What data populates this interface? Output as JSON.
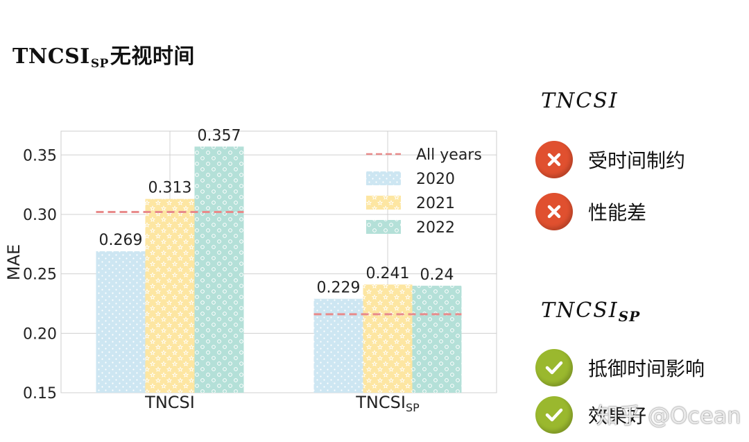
{
  "slide_title": {
    "main": "TNCSI",
    "sub": "SP",
    "suffix": "无视时间"
  },
  "chart_data": {
    "type": "bar",
    "ylabel": "MAE",
    "ylim": [
      0.15,
      0.37
    ],
    "yticks": [
      "0.15",
      "0.20",
      "0.25",
      "0.30",
      "0.35"
    ],
    "grid": true,
    "legend_position": "top-right",
    "categories": [
      {
        "main": "TNCSI",
        "sub": ""
      },
      {
        "main": "TNCSI",
        "sub": "SP"
      }
    ],
    "series": [
      {
        "name": "2020",
        "color": "#cde6f2",
        "pattern": "dots",
        "values": [
          0.269,
          0.229
        ],
        "labels": [
          "0.269",
          "0.229"
        ]
      },
      {
        "name": "2021",
        "color": "#fde6a2",
        "pattern": "stars",
        "values": [
          0.313,
          0.241
        ],
        "labels": [
          "0.313",
          "0.241"
        ]
      },
      {
        "name": "2022",
        "color": "#b4e0d8",
        "pattern": "circles",
        "values": [
          0.357,
          0.24
        ],
        "labels": [
          "0.357",
          "0.24"
        ]
      }
    ],
    "reference_line": {
      "name": "All years",
      "color": "#e88a8a",
      "values": [
        0.302,
        0.216
      ]
    }
  },
  "right_panel": {
    "sections": [
      {
        "title": "TNCSI",
        "title_sub": "",
        "items": [
          {
            "icon": "x-mark-icon",
            "color": "#e0502f",
            "label": "受时间制约"
          },
          {
            "icon": "x-mark-icon",
            "color": "#e0502f",
            "label": "性能差"
          }
        ]
      },
      {
        "title": "TNCSI",
        "title_sub": "SP",
        "items": [
          {
            "icon": "check-mark-icon",
            "color": "#9ab82e",
            "label": "抵御时间影响"
          },
          {
            "icon": "check-mark-icon",
            "color": "#9ab82e",
            "label": "效果好"
          }
        ]
      }
    ]
  },
  "watermark": "知乎 @Ocean"
}
